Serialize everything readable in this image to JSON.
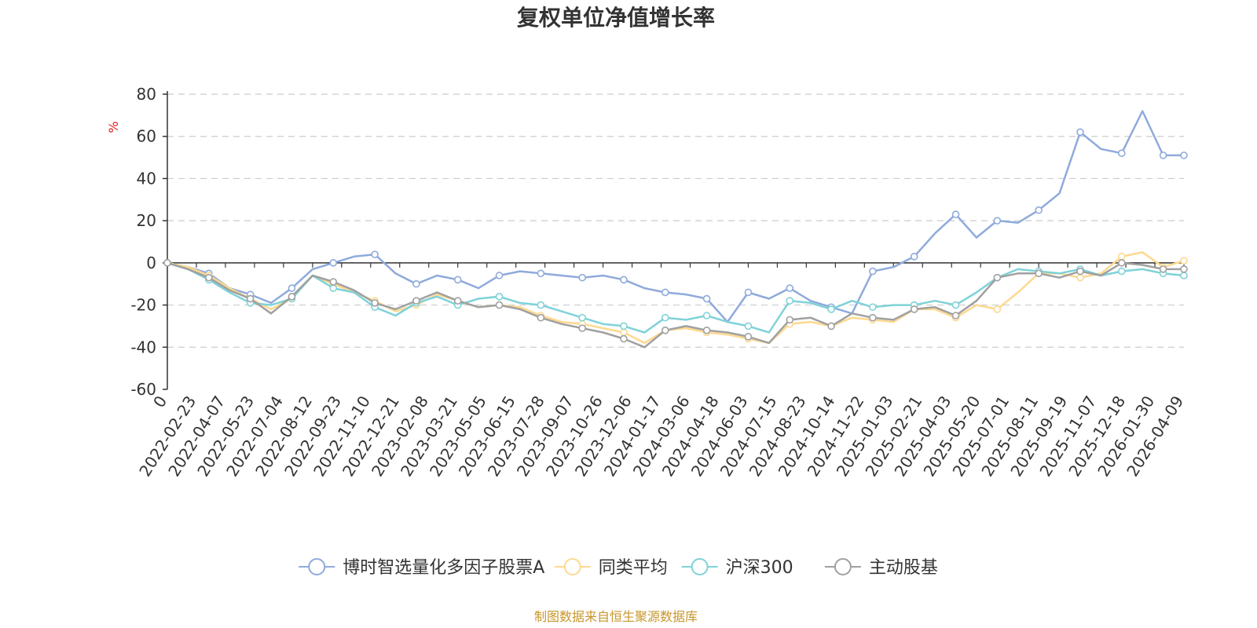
{
  "chart_data": {
    "type": "line",
    "title": "复权单位净值增长率",
    "ylabel": "%",
    "ylim": [
      -60,
      80
    ],
    "yticks": [
      80,
      60,
      40,
      20,
      0,
      -20,
      -40,
      -60
    ],
    "grid": true,
    "legend_position": "bottom",
    "x_ticks": [
      "0",
      "2022-02-23",
      "2022-04-07",
      "2022-05-23",
      "2022-07-04",
      "2022-08-12",
      "2022-09-23",
      "2022-11-10",
      "2022-12-21",
      "2023-02-08",
      "2023-03-21",
      "2023-05-05",
      "2023-06-15",
      "2023-07-28",
      "2023-09-07",
      "2023-10-26",
      "2023-12-06",
      "2024-01-17",
      "2024-03-06",
      "2024-04-18",
      "2024-06-03",
      "2024-07-15",
      "2024-08-23",
      "2024-10-14",
      "2024-11-22",
      "2025-01-03",
      "2025-02-21",
      "2025-04-03",
      "2025-05-20",
      "2025-07-01",
      "2025-08-11",
      "2025-09-19",
      "2025-11-07",
      "2025-12-18",
      "2026-01-30",
      "2026-04-09"
    ],
    "series": [
      {
        "name": "博时智选量化多因子股票A",
        "color": "#8faadc",
        "values": [
          0,
          -2,
          -5,
          -12,
          -15,
          -19,
          -12,
          -3,
          0,
          3,
          4,
          -5,
          -10,
          -6,
          -8,
          -12,
          -6,
          -4,
          -5,
          -6,
          -7,
          -6,
          -8,
          -12,
          -14,
          -15,
          -17,
          -28,
          -14,
          -17,
          -12,
          -18,
          -21,
          -24,
          -4,
          -2,
          3,
          14,
          23,
          12,
          20,
          19,
          25,
          33,
          62,
          54,
          52,
          72,
          51,
          51
        ]
      },
      {
        "name": "同类平均",
        "color": "#fdd98f",
        "values": [
          0,
          -2,
          -6,
          -12,
          -17,
          -22,
          -17,
          -6,
          -10,
          -14,
          -18,
          -23,
          -20,
          -15,
          -18,
          -21,
          -20,
          -21,
          -25,
          -28,
          -29,
          -31,
          -33,
          -38,
          -32,
          -31,
          -33,
          -34,
          -36,
          -38,
          -29,
          -28,
          -30,
          -26,
          -27,
          -28,
          -22,
          -22,
          -26,
          -20,
          -22,
          -14,
          -5,
          -5,
          -7,
          -5,
          3,
          5,
          -2,
          1
        ]
      },
      {
        "name": "沪深300",
        "color": "#7fd2d8",
        "values": [
          0,
          -3,
          -8,
          -14,
          -19,
          -20,
          -17,
          -6,
          -12,
          -14,
          -21,
          -25,
          -19,
          -16,
          -20,
          -17,
          -16,
          -19,
          -20,
          -23,
          -26,
          -29,
          -30,
          -33,
          -26,
          -27,
          -25,
          -28,
          -30,
          -33,
          -18,
          -19,
          -22,
          -18,
          -21,
          -20,
          -20,
          -18,
          -20,
          -14,
          -7,
          -3,
          -4,
          -5,
          -3,
          -6,
          -4,
          -3,
          -5,
          -6
        ]
      },
      {
        "name": "主动股基",
        "color": "#a0a0a0",
        "values": [
          0,
          -3,
          -7,
          -13,
          -17,
          -24,
          -16,
          -6,
          -9,
          -13,
          -19,
          -22,
          -18,
          -14,
          -18,
          -21,
          -20,
          -22,
          -26,
          -29,
          -31,
          -33,
          -36,
          -40,
          -32,
          -30,
          -32,
          -33,
          -35,
          -38,
          -27,
          -26,
          -30,
          -24,
          -26,
          -27,
          -22,
          -21,
          -25,
          -18,
          -7,
          -5,
          -5,
          -7,
          -4,
          -6,
          0,
          -1,
          -3,
          -3
        ]
      }
    ]
  },
  "footer": {
    "source": "制图数据来自恒生聚源数据库"
  }
}
